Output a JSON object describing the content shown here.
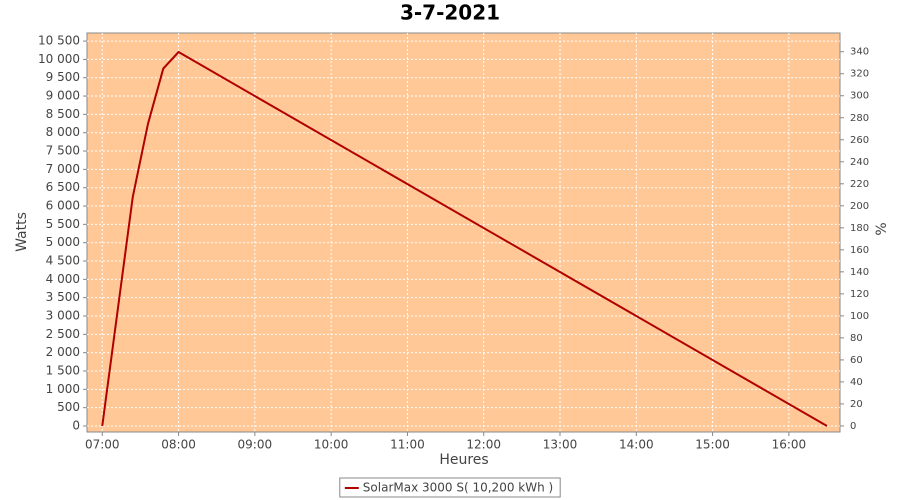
{
  "chart_data": {
    "type": "line",
    "title": "3-7-2021",
    "x_label": "Heures",
    "y_label": "Watts",
    "y2_label": "%",
    "x": [
      7.0,
      7.4,
      7.6,
      7.8,
      8.0,
      16.5
    ],
    "series": [
      {
        "name": "SolarMax 3000 S( 10,200 kWh )",
        "color": "#b00000",
        "values": [
          0,
          6250,
          8250,
          9750,
          10200,
          0
        ]
      }
    ],
    "xlim": [
      6.8,
      16.67
    ],
    "xticks": [
      {
        "value": 7,
        "label": "07:00"
      },
      {
        "value": 8,
        "label": "08:00"
      },
      {
        "value": 9,
        "label": "09:00"
      },
      {
        "value": 10,
        "label": "10:00"
      },
      {
        "value": 11,
        "label": "11:00"
      },
      {
        "value": 12,
        "label": "12:00"
      },
      {
        "value": 13,
        "label": "13:00"
      },
      {
        "value": 14,
        "label": "14:00"
      },
      {
        "value": 15,
        "label": "15:00"
      },
      {
        "value": 16,
        "label": "16:00"
      }
    ],
    "ylim": [
      -164,
      10720
    ],
    "yticks": [
      0,
      500,
      {
        "value": 1000,
        "label": "1 000"
      },
      {
        "value": 1500,
        "label": "1 500"
      },
      {
        "value": 2000,
        "label": "2 000"
      },
      {
        "value": 2500,
        "label": "2 500"
      },
      {
        "value": 3000,
        "label": "3 000"
      },
      {
        "value": 3500,
        "label": "3 500"
      },
      {
        "value": 4000,
        "label": "4 000"
      },
      {
        "value": 4500,
        "label": "4 500"
      },
      {
        "value": 5000,
        "label": "5 000"
      },
      {
        "value": 5500,
        "label": "5 500"
      },
      {
        "value": 6000,
        "label": "6 000"
      },
      {
        "value": 6500,
        "label": "6 500"
      },
      {
        "value": 7000,
        "label": "7 000"
      },
      {
        "value": 7500,
        "label": "7 500"
      },
      {
        "value": 8000,
        "label": "8 000"
      },
      {
        "value": 8500,
        "label": "8 500"
      },
      {
        "value": 9000,
        "label": "9 000"
      },
      {
        "value": 9500,
        "label": "9 500"
      },
      {
        "value": 10000,
        "label": "10 000"
      },
      {
        "value": 10500,
        "label": "10 500"
      }
    ],
    "y2lim": [
      -5.5,
      357
    ],
    "y2ticks": [
      0,
      20,
      40,
      60,
      80,
      100,
      120,
      140,
      160,
      180,
      200,
      220,
      240,
      260,
      280,
      300,
      320,
      340
    ],
    "grid": true,
    "plot_background": "#ffc896",
    "legend": "bottom"
  }
}
